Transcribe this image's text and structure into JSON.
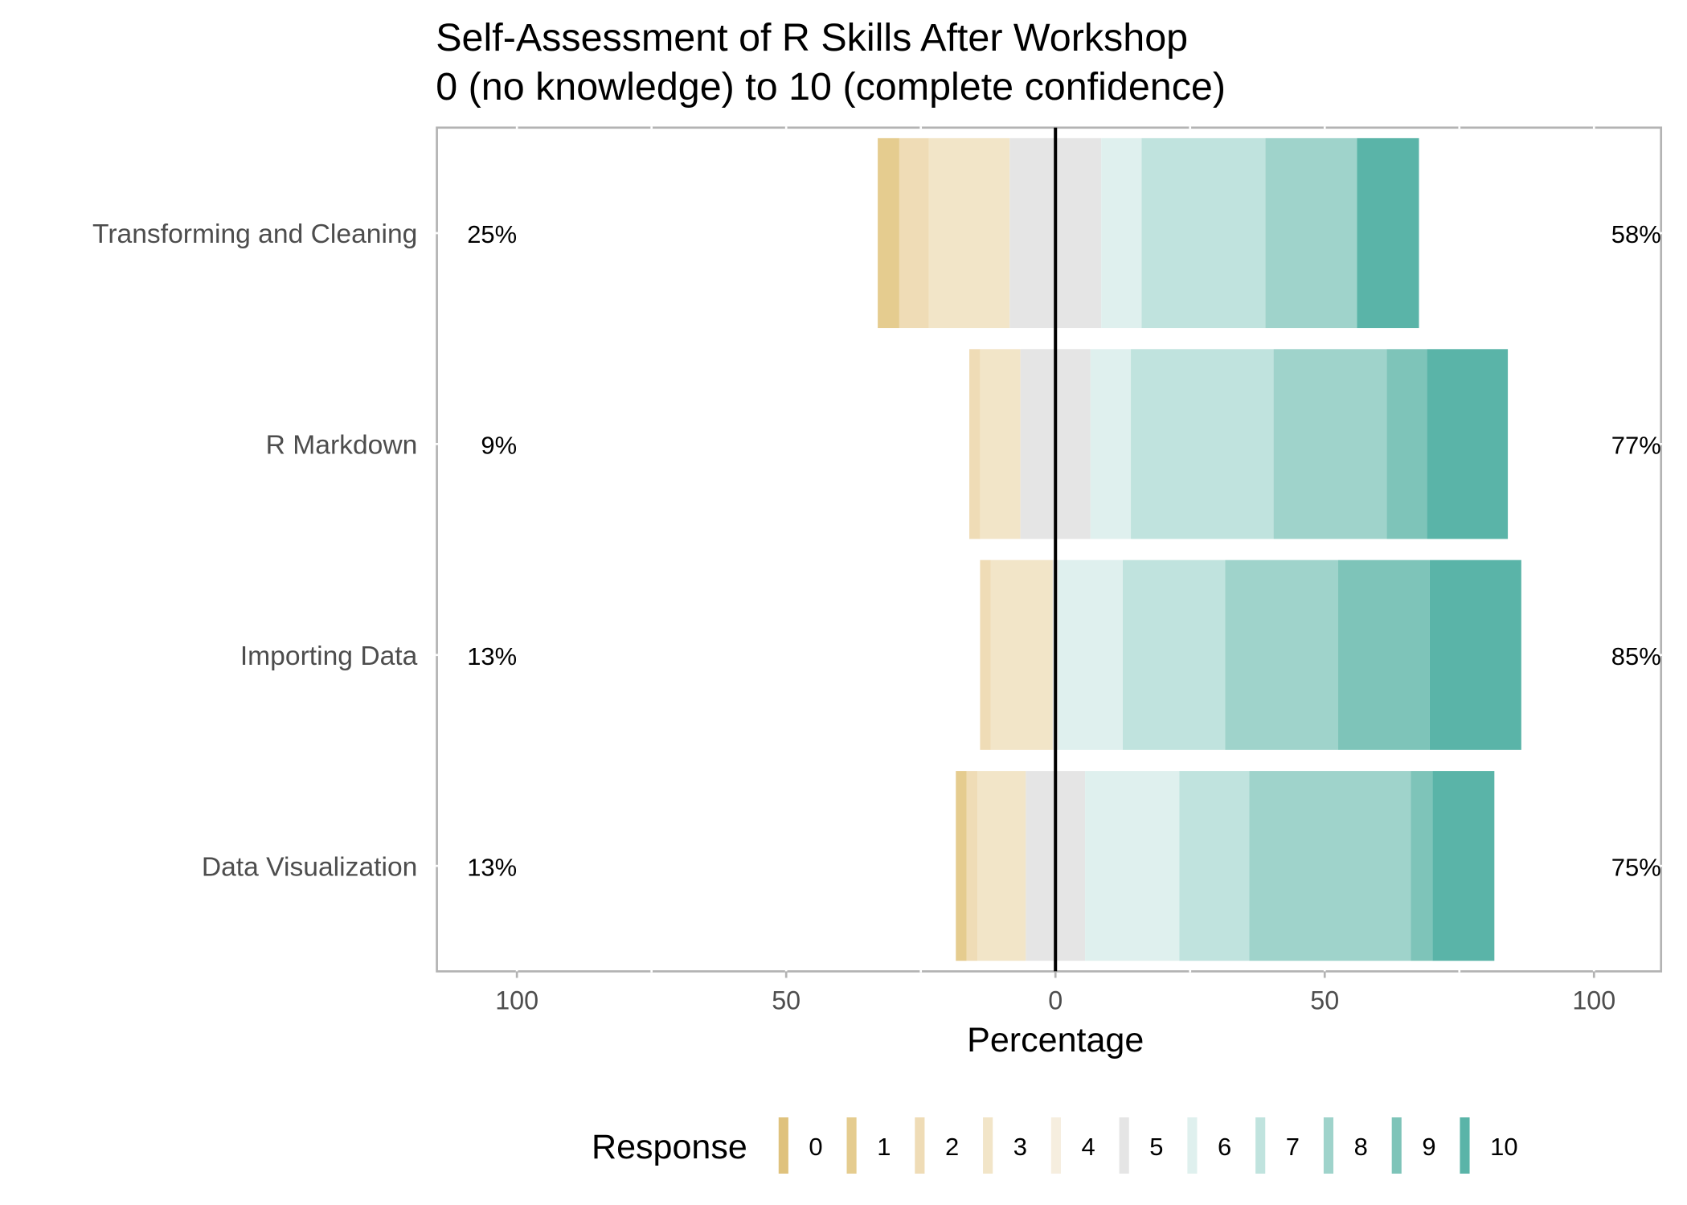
{
  "chart_data": {
    "type": "bar",
    "orientation": "horizontal-diverging",
    "title": "Self-Assessment of R Skills After Workshop",
    "subtitle": "0 (no knowledge) to 10 (complete confidence)",
    "xlabel": "Percentage",
    "ylabel": "",
    "xlim": [
      -100,
      100
    ],
    "x_ticks": [
      -100,
      -50,
      0,
      50,
      100
    ],
    "x_tick_labels": [
      "100",
      "50",
      "0",
      "50",
      "100"
    ],
    "categories": [
      "Transforming and Cleaning",
      "R Markdown",
      "Importing Data",
      "Data Visualization"
    ],
    "legend": {
      "title": "Response",
      "position": "bottom",
      "labels": [
        "0",
        "1",
        "2",
        "3",
        "4",
        "5",
        "6",
        "7",
        "8",
        "9",
        "10"
      ]
    },
    "series": [
      {
        "name": "0",
        "color": "#dfc27d",
        "values": [
          0.0,
          0.0,
          0.0,
          0.0
        ]
      },
      {
        "name": "1",
        "color": "#e5cc8f",
        "values": [
          4.0,
          0.0,
          0.0,
          2.0
        ]
      },
      {
        "name": "2",
        "color": "#efdcb6",
        "values": [
          5.5,
          2.0,
          2.0,
          2.0
        ]
      },
      {
        "name": "3",
        "color": "#f2e5c8",
        "values": [
          15.0,
          7.5,
          11.5,
          9.0
        ]
      },
      {
        "name": "4",
        "color": "#f6eedf",
        "values": [
          0.0,
          0.0,
          0.0,
          0.0
        ]
      },
      {
        "name": "5",
        "color": "#e5e5e5",
        "values": [
          17.0,
          13.0,
          1.0,
          11.0
        ]
      },
      {
        "name": "6",
        "color": "#dff0ee",
        "values": [
          7.5,
          7.5,
          12.0,
          17.5
        ]
      },
      {
        "name": "7",
        "color": "#c0e3de",
        "values": [
          23.0,
          26.5,
          19.0,
          13.0
        ]
      },
      {
        "name": "8",
        "color": "#9fd3cb",
        "values": [
          17.0,
          21.0,
          21.0,
          30.0
        ]
      },
      {
        "name": "9",
        "color": "#7ec4b9",
        "values": [
          0.0,
          7.5,
          17.0,
          4.0
        ]
      },
      {
        "name": "10",
        "color": "#5ab4a8",
        "values": [
          11.5,
          15.0,
          17.0,
          11.5
        ]
      }
    ],
    "left_percent_labels": [
      "25%",
      "9%",
      "13%",
      "13%"
    ],
    "right_percent_labels": [
      "58%",
      "77%",
      "85%",
      "75%"
    ],
    "center_line": true,
    "grid": true
  }
}
